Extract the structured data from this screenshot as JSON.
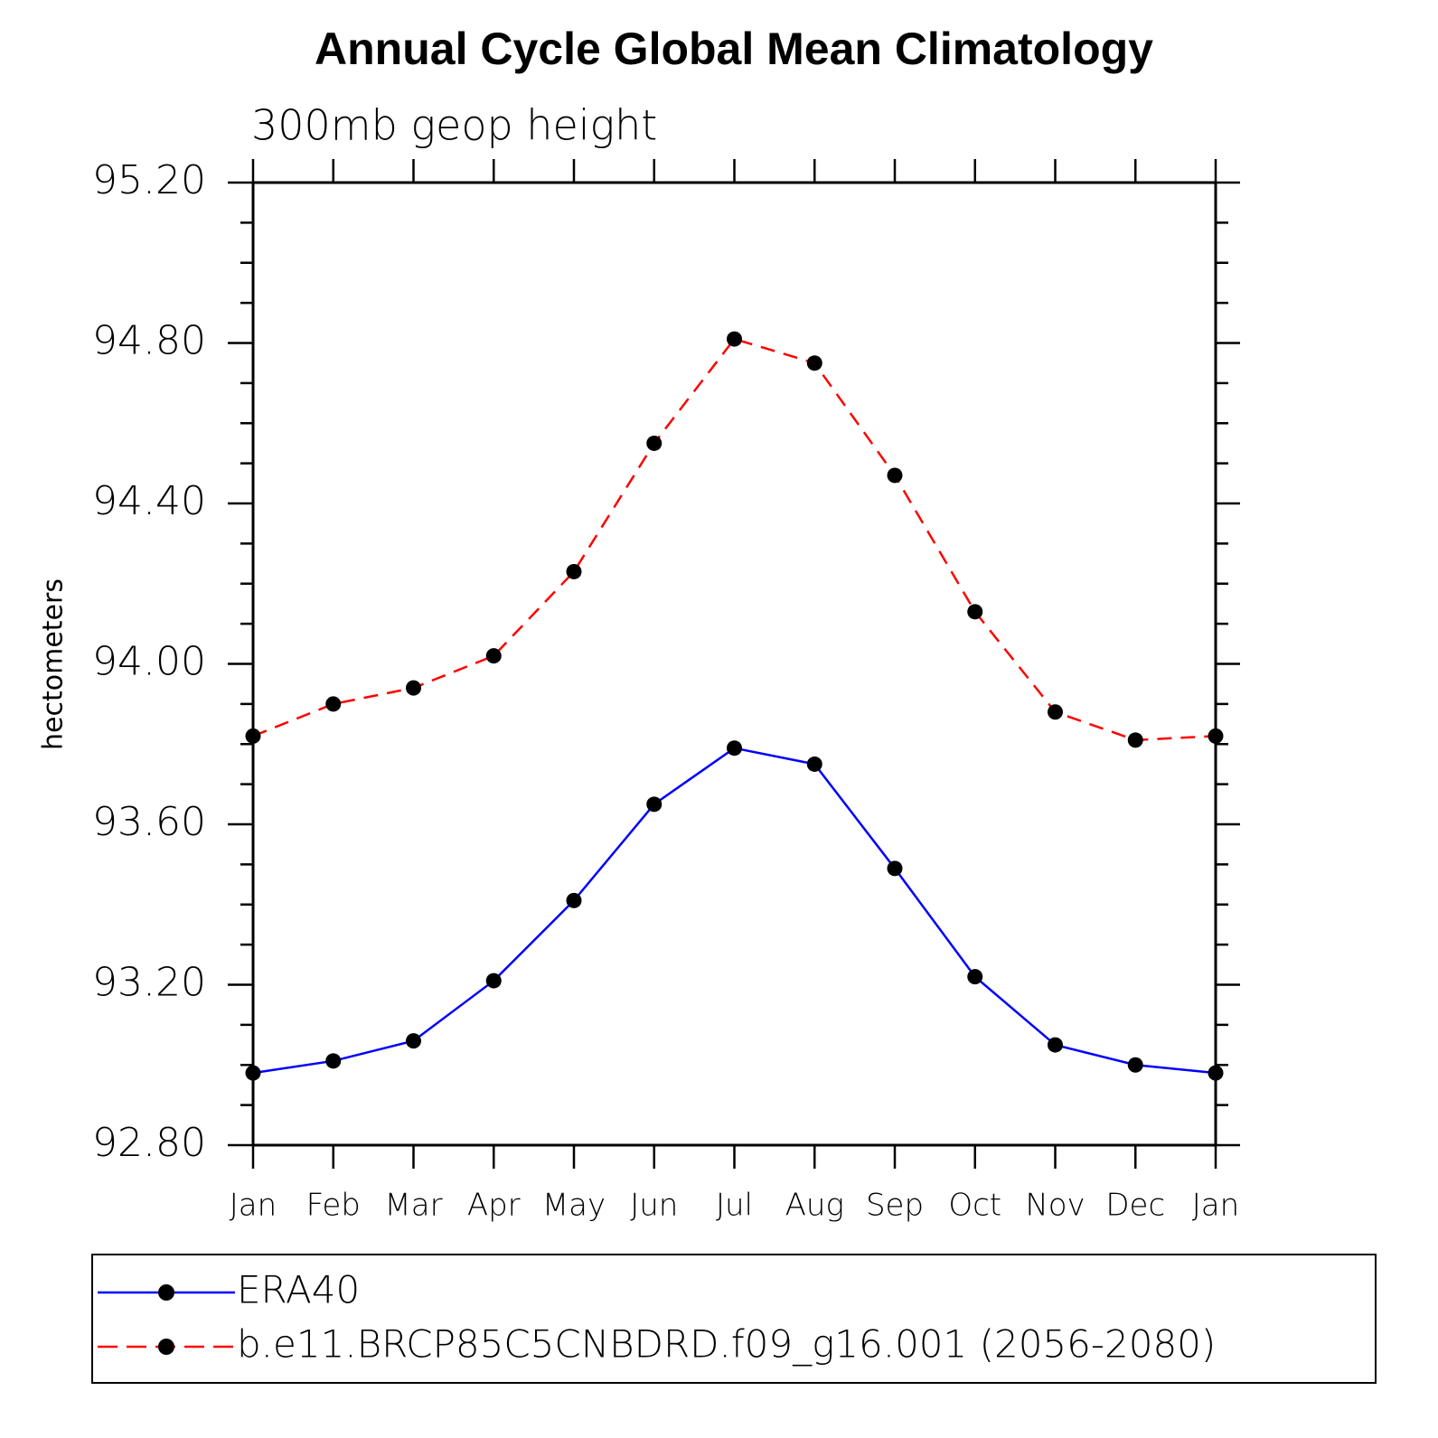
{
  "chart_data": {
    "type": "line",
    "title": "Annual Cycle Global Mean Climatology",
    "subtitle": "300mb geop height",
    "y_label": "hectometers",
    "categories": [
      "Jan",
      "Feb",
      "Mar",
      "Apr",
      "May",
      "Jun",
      "Jul",
      "Aug",
      "Sep",
      "Oct",
      "Nov",
      "Dec",
      "Jan"
    ],
    "series": [
      {
        "name": "ERA40",
        "color": "#0000ff",
        "dash": false,
        "values": [
          92.98,
          93.01,
          93.06,
          93.21,
          93.41,
          93.65,
          93.79,
          93.75,
          93.49,
          93.22,
          93.05,
          93.0,
          92.98
        ]
      },
      {
        "name": "b.e11.BRCP85C5CNBDRD.f09_g16.001 (2056-2080)",
        "color": "#ff0000",
        "dash": true,
        "values": [
          93.82,
          93.9,
          93.94,
          94.02,
          94.23,
          94.55,
          94.81,
          94.75,
          94.47,
          94.13,
          93.88,
          93.81,
          93.82
        ]
      }
    ],
    "ylim": [
      92.8,
      95.2
    ],
    "yticks": [
      {
        "value": 92.8,
        "label": "92.80"
      },
      {
        "value": 93.2,
        "label": "93.20"
      },
      {
        "value": 93.6,
        "label": "93.60"
      },
      {
        "value": 94.0,
        "label": "94.00"
      },
      {
        "value": 94.4,
        "label": "94.40"
      },
      {
        "value": 94.8,
        "label": "94.80"
      },
      {
        "value": 95.2,
        "label": "95.20"
      }
    ],
    "yminorticks": [
      92.9,
      93.0,
      93.1,
      93.3,
      93.4,
      93.5,
      93.7,
      93.8,
      93.9,
      94.1,
      94.2,
      94.3,
      94.5,
      94.6,
      94.7,
      94.9,
      95.0,
      95.1
    ],
    "grid": false
  }
}
